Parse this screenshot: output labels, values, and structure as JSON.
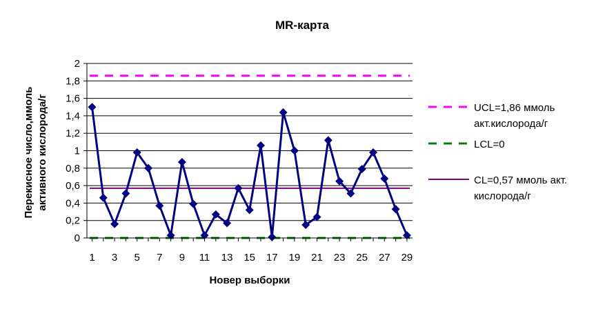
{
  "chart_data": {
    "type": "line",
    "title": "MR-карта",
    "xlabel": "Новер выборки",
    "ylabel_lines": [
      "Перекисное число,ммоль",
      "активного кислорода/г"
    ],
    "x": [
      1,
      2,
      3,
      4,
      5,
      6,
      7,
      8,
      9,
      10,
      11,
      12,
      13,
      14,
      15,
      16,
      17,
      18,
      19,
      20,
      21,
      22,
      23,
      24,
      25,
      26,
      27,
      28,
      29
    ],
    "x_tick_labels": [
      "1",
      "3",
      "5",
      "7",
      "9",
      "11",
      "13",
      "15",
      "17",
      "19",
      "21",
      "23",
      "25",
      "27",
      "29"
    ],
    "y_tick_labels": [
      "0",
      "0,2",
      "0,4",
      "0,6",
      "0,8",
      "1",
      "1,2",
      "1,4",
      "1,6",
      "1,8",
      "2"
    ],
    "ylim": [
      0,
      2
    ],
    "grid": true,
    "legend_position": "right",
    "series": [
      {
        "values": [
          1.5,
          0.46,
          0.16,
          0.51,
          0.98,
          0.8,
          0.37,
          0.03,
          0.87,
          0.39,
          0.03,
          0.27,
          0.17,
          0.57,
          0.32,
          1.06,
          0.01,
          1.44,
          1.0,
          0.15,
          0.24,
          1.12,
          0.65,
          0.51,
          0.79,
          0.98,
          0.68,
          0.33,
          0.03
        ],
        "color": "#000080",
        "marker": "diamond"
      }
    ],
    "reference_lines": [
      {
        "label_lines": [
          "UCL=1,86 ммоль",
          "акт.кислорода/г"
        ],
        "value": 1.86,
        "color": "#ff00ff",
        "style": "dashed"
      },
      {
        "label_lines": [
          "LCL=0"
        ],
        "value": 0,
        "color": "#008000",
        "style": "dashed"
      },
      {
        "label_lines": [
          "CL=0,57 ммоль акт.",
          "кислорода/г"
        ],
        "value": 0.57,
        "color": "#800080",
        "style": "solid"
      }
    ]
  }
}
